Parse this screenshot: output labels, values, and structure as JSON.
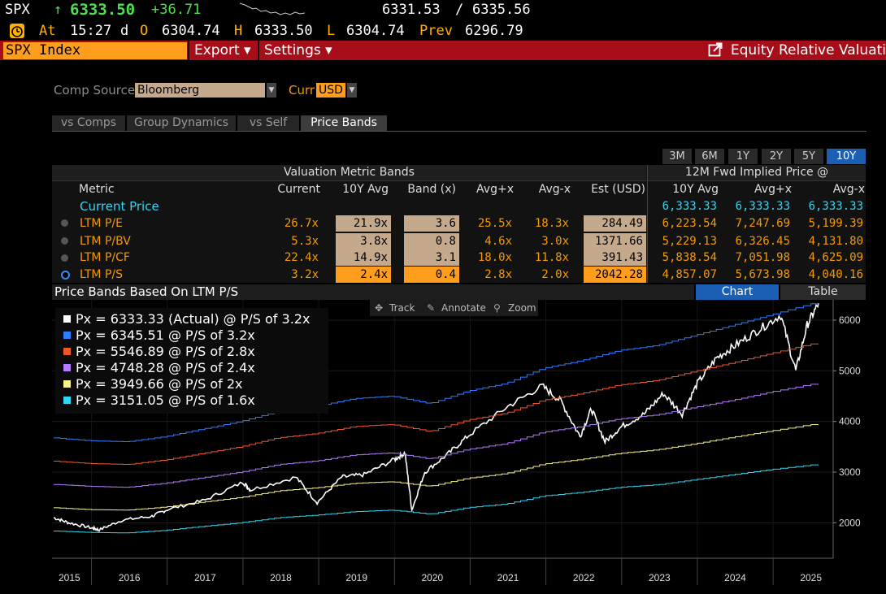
{
  "quote": {
    "symbol": "SPX",
    "arrow": "↑",
    "last": "6333.50",
    "change": "+36.71",
    "bid": "6331.53",
    "sep": "/",
    "ask": "6335.56",
    "at_label": "At",
    "time": "15:27",
    "d": "d",
    "o_label": "O",
    "open": "6304.74",
    "h_label": "H",
    "high": "6333.50",
    "l_label": "L",
    "low": "6304.74",
    "prev_label": "Prev",
    "prev": "6296.79"
  },
  "menu": {
    "ticker": "SPX Index",
    "export": "Export ▾",
    "settings": "Settings ▾",
    "title": "Equity Relative Valuati"
  },
  "selectors": {
    "comp_source_label": "Comp Source",
    "comp_source_value": "Bloomberg",
    "curr_label": "Curr",
    "curr_value": "USD"
  },
  "tabs": [
    "vs Comps",
    "Group Dynamics",
    "vs Self",
    "Price Bands"
  ],
  "periods": [
    "3M",
    "6M",
    "1Y",
    "2Y",
    "5Y",
    "10Y"
  ],
  "table": {
    "group1": "Valuation Metric Bands",
    "group2": "12M Fwd Implied Price @",
    "headers": [
      "Metric",
      "Current",
      "10Y Avg",
      "Band (x)",
      "Avg+x",
      "Avg-x",
      "Est (USD)",
      "10Y Avg",
      "Avg+x",
      "Avg-x"
    ],
    "current_price": {
      "label": "Current Price",
      "avg": "6,333.33",
      "plus": "6,333.33",
      "minus": "6,333.33"
    },
    "rows": [
      {
        "metric": "LTM P/E",
        "current": "26.7x",
        "avg": "21.9x",
        "band": "3.6",
        "plus": "25.5x",
        "minus": "18.3x",
        "est": "284.49",
        "p_avg": "6,223.54",
        "p_plus": "7,247.69",
        "p_minus": "5,199.39"
      },
      {
        "metric": "LTM P/BV",
        "current": "5.3x",
        "avg": "3.8x",
        "band": "0.8",
        "plus": "4.6x",
        "minus": "3.0x",
        "est": "1371.66",
        "p_avg": "5,229.13",
        "p_plus": "6,326.45",
        "p_minus": "4,131.80"
      },
      {
        "metric": "LTM P/CF",
        "current": "22.4x",
        "avg": "14.9x",
        "band": "3.1",
        "plus": "18.0x",
        "minus": "11.8x",
        "est": "391.43",
        "p_avg": "5,838.54",
        "p_plus": "7,051.98",
        "p_minus": "4,625.09"
      },
      {
        "metric": "LTM P/S",
        "current": "3.2x",
        "avg": "2.4x",
        "band": "0.4",
        "plus": "2.8x",
        "minus": "2.0x",
        "est": "2042.28",
        "p_avg": "4,857.07",
        "p_plus": "5,673.98",
        "p_minus": "4,040.16"
      }
    ]
  },
  "chart_header": {
    "title": "Price Bands Based On LTM P/S",
    "chart_btn": "Chart",
    "table_btn": "Table"
  },
  "toolbar": {
    "track": "Track",
    "annotate": "Annotate",
    "zoom": "Zoom"
  },
  "colors": {
    "white": "#ffffff",
    "blue": "#2f7dff",
    "red": "#f0572b",
    "purple": "#b57cff",
    "yellow": "#f7f28a",
    "cyan": "#33d5f2"
  },
  "chart_data": {
    "type": "line",
    "title": "Price Bands Based On LTM P/S",
    "legend": [
      "Px = 6333.33 (Actual) @ P/S of 3.2x",
      "Px = 6345.51 @ P/S of 3.2x",
      "Px = 5546.89 @ P/S of 2.8x",
      "Px = 4748.28 @ P/S of 2.4x",
      "Px = 3949.66 @ P/S of 2x",
      "Px = 3151.05 @ P/S of 1.6x"
    ],
    "x_ticks": [
      "2015",
      "2016",
      "2017",
      "2018",
      "2019",
      "2020",
      "2021",
      "2022",
      "2023",
      "2024",
      "2025"
    ],
    "y_ticks": [
      "6000",
      "5000",
      "4000",
      "3000",
      "2000"
    ],
    "ylim": [
      1300,
      6400
    ],
    "xlim": [
      2015.5,
      2025.6
    ],
    "series": [
      {
        "name": "Actual",
        "color": "white",
        "points": [
          [
            2015.5,
            2100
          ],
          [
            2015.7,
            2000
          ],
          [
            2016.0,
            1900
          ],
          [
            2016.1,
            1860
          ],
          [
            2016.4,
            2050
          ],
          [
            2016.8,
            2130
          ],
          [
            2017.0,
            2260
          ],
          [
            2017.5,
            2450
          ],
          [
            2018.0,
            2800
          ],
          [
            2018.1,
            2650
          ],
          [
            2018.7,
            2900
          ],
          [
            2018.98,
            2400
          ],
          [
            2019.3,
            2900
          ],
          [
            2019.6,
            2950
          ],
          [
            2020.0,
            3250
          ],
          [
            2020.14,
            3380
          ],
          [
            2020.23,
            2250
          ],
          [
            2020.4,
            3000
          ],
          [
            2020.7,
            3350
          ],
          [
            2021.0,
            3750
          ],
          [
            2021.5,
            4300
          ],
          [
            2021.95,
            4700
          ],
          [
            2022.2,
            4400
          ],
          [
            2022.45,
            3700
          ],
          [
            2022.6,
            4250
          ],
          [
            2022.78,
            3600
          ],
          [
            2023.0,
            3900
          ],
          [
            2023.3,
            4150
          ],
          [
            2023.55,
            4550
          ],
          [
            2023.8,
            4150
          ],
          [
            2024.0,
            4750
          ],
          [
            2024.25,
            5250
          ],
          [
            2024.5,
            5500
          ],
          [
            2024.8,
            5800
          ],
          [
            2025.1,
            6100
          ],
          [
            2025.3,
            5000
          ],
          [
            2025.45,
            5900
          ],
          [
            2025.6,
            6333
          ]
        ]
      },
      {
        "name": "3.2x",
        "color": "blue",
        "points": [
          [
            2015.5,
            3680
          ],
          [
            2016.0,
            3620
          ],
          [
            2016.5,
            3600
          ],
          [
            2017.0,
            3700
          ],
          [
            2017.5,
            3850
          ],
          [
            2018.0,
            4000
          ],
          [
            2018.5,
            4200
          ],
          [
            2019.0,
            4300
          ],
          [
            2019.5,
            4450
          ],
          [
            2020.0,
            4500
          ],
          [
            2020.5,
            4350
          ],
          [
            2021.0,
            4600
          ],
          [
            2021.5,
            4750
          ],
          [
            2022.0,
            5050
          ],
          [
            2022.5,
            5200
          ],
          [
            2023.0,
            5400
          ],
          [
            2023.5,
            5500
          ],
          [
            2024.0,
            5700
          ],
          [
            2024.5,
            5900
          ],
          [
            2025.0,
            6100
          ],
          [
            2025.6,
            6345
          ]
        ]
      },
      {
        "name": "2.8x",
        "color": "red",
        "points": [
          [
            2015.5,
            3220
          ],
          [
            2016.0,
            3170
          ],
          [
            2016.5,
            3150
          ],
          [
            2017.0,
            3240
          ],
          [
            2017.5,
            3370
          ],
          [
            2018.0,
            3500
          ],
          [
            2018.5,
            3680
          ],
          [
            2019.0,
            3760
          ],
          [
            2019.5,
            3900
          ],
          [
            2020.0,
            3940
          ],
          [
            2020.5,
            3800
          ],
          [
            2021.0,
            4030
          ],
          [
            2021.5,
            4160
          ],
          [
            2022.0,
            4420
          ],
          [
            2022.5,
            4550
          ],
          [
            2023.0,
            4720
          ],
          [
            2023.5,
            4810
          ],
          [
            2024.0,
            4990
          ],
          [
            2024.5,
            5160
          ],
          [
            2025.0,
            5340
          ],
          [
            2025.6,
            5547
          ]
        ]
      },
      {
        "name": "2.4x",
        "color": "purple",
        "points": [
          [
            2015.5,
            2760
          ],
          [
            2016.0,
            2720
          ],
          [
            2016.5,
            2700
          ],
          [
            2017.0,
            2780
          ],
          [
            2017.5,
            2890
          ],
          [
            2018.0,
            3000
          ],
          [
            2018.5,
            3150
          ],
          [
            2019.0,
            3220
          ],
          [
            2019.5,
            3340
          ],
          [
            2020.0,
            3380
          ],
          [
            2020.5,
            3260
          ],
          [
            2021.0,
            3450
          ],
          [
            2021.5,
            3560
          ],
          [
            2022.0,
            3790
          ],
          [
            2022.5,
            3900
          ],
          [
            2023.0,
            4050
          ],
          [
            2023.5,
            4130
          ],
          [
            2024.0,
            4280
          ],
          [
            2024.5,
            4420
          ],
          [
            2025.0,
            4580
          ],
          [
            2025.6,
            4748
          ]
        ]
      },
      {
        "name": "2x",
        "color": "yellow",
        "points": [
          [
            2015.5,
            2300
          ],
          [
            2016.0,
            2260
          ],
          [
            2016.5,
            2250
          ],
          [
            2017.0,
            2310
          ],
          [
            2017.5,
            2410
          ],
          [
            2018.0,
            2500
          ],
          [
            2018.5,
            2630
          ],
          [
            2019.0,
            2690
          ],
          [
            2019.5,
            2780
          ],
          [
            2020.0,
            2810
          ],
          [
            2020.5,
            2720
          ],
          [
            2021.0,
            2880
          ],
          [
            2021.5,
            2970
          ],
          [
            2022.0,
            3160
          ],
          [
            2022.5,
            3250
          ],
          [
            2023.0,
            3370
          ],
          [
            2023.5,
            3440
          ],
          [
            2024.0,
            3560
          ],
          [
            2024.5,
            3690
          ],
          [
            2025.0,
            3810
          ],
          [
            2025.6,
            3950
          ]
        ]
      },
      {
        "name": "1.6x",
        "color": "cyan",
        "points": [
          [
            2015.5,
            1840
          ],
          [
            2016.0,
            1810
          ],
          [
            2016.5,
            1800
          ],
          [
            2017.0,
            1850
          ],
          [
            2017.5,
            1930
          ],
          [
            2018.0,
            2000
          ],
          [
            2018.5,
            2100
          ],
          [
            2019.0,
            2150
          ],
          [
            2019.5,
            2220
          ],
          [
            2020.0,
            2250
          ],
          [
            2020.5,
            2170
          ],
          [
            2021.0,
            2300
          ],
          [
            2021.5,
            2370
          ],
          [
            2022.0,
            2530
          ],
          [
            2022.5,
            2600
          ],
          [
            2023.0,
            2700
          ],
          [
            2023.5,
            2750
          ],
          [
            2024.0,
            2850
          ],
          [
            2024.5,
            2950
          ],
          [
            2025.0,
            3050
          ],
          [
            2025.6,
            3151
          ]
        ]
      }
    ]
  }
}
